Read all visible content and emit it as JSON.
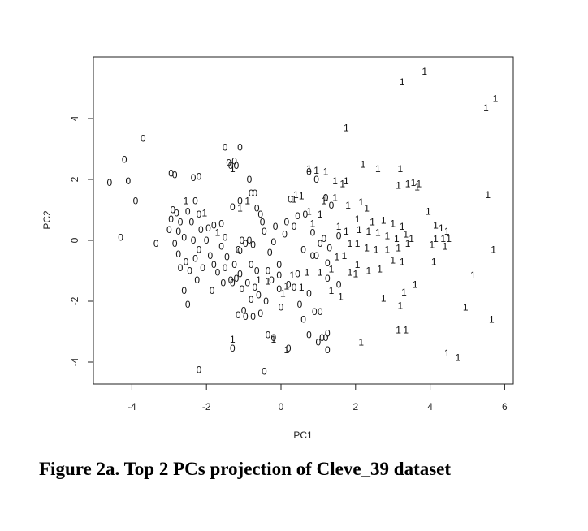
{
  "chart_data": {
    "type": "scatter",
    "title": "",
    "xlabel": "PC1",
    "ylabel": "PC2",
    "xlim": [
      -5,
      6.2
    ],
    "ylim": [
      -4.7,
      6
    ],
    "x_ticks": [
      "-4",
      "-2",
      "0",
      "2",
      "4",
      "6"
    ],
    "y_ticks": [
      "-4",
      "-2",
      "0",
      "2",
      "4"
    ],
    "grid": false,
    "legend": "none",
    "series": [
      {
        "name": "0",
        "points": [
          [
            -4.6,
            1.9
          ],
          [
            -4.2,
            2.65
          ],
          [
            -4.1,
            1.95
          ],
          [
            -3.7,
            3.35
          ],
          [
            -3.9,
            1.3
          ],
          [
            -4.3,
            0.1
          ],
          [
            -3.35,
            -0.1
          ],
          [
            -2.95,
            2.2
          ],
          [
            -2.85,
            2.15
          ],
          [
            -2.9,
            1
          ],
          [
            -2.95,
            0.7
          ],
          [
            -3.0,
            0.35
          ],
          [
            -2.8,
            0.9
          ],
          [
            -2.7,
            0.6
          ],
          [
            -2.75,
            0.3
          ],
          [
            -2.6,
            0.1
          ],
          [
            -2.85,
            -0.1
          ],
          [
            -2.75,
            -0.45
          ],
          [
            -2.55,
            -0.7
          ],
          [
            -2.7,
            -0.9
          ],
          [
            -2.45,
            -1.0
          ],
          [
            -2.6,
            -1.65
          ],
          [
            -2.5,
            -2.1
          ],
          [
            -2.35,
            2.05
          ],
          [
            -2.2,
            2.1
          ],
          [
            -2.3,
            1.3
          ],
          [
            -2.5,
            0.95
          ],
          [
            -2.4,
            0.6
          ],
          [
            -2.2,
            0.85
          ],
          [
            -2.15,
            0.35
          ],
          [
            -2.35,
            0.0
          ],
          [
            -2.2,
            -0.3
          ],
          [
            -2.3,
            -0.6
          ],
          [
            -2.1,
            -0.9
          ],
          [
            -2.25,
            -1.3
          ],
          [
            -1.95,
            0.4
          ],
          [
            -2.0,
            0.0
          ],
          [
            -1.9,
            -0.5
          ],
          [
            -1.8,
            -0.8
          ],
          [
            -1.7,
            -1.05
          ],
          [
            -1.8,
            0.5
          ],
          [
            -1.6,
            0.55
          ],
          [
            -1.5,
            0.1
          ],
          [
            -1.6,
            -0.2
          ],
          [
            -1.45,
            -0.55
          ],
          [
            -1.5,
            -0.9
          ],
          [
            -1.55,
            -1.4
          ],
          [
            -1.35,
            -1.3
          ],
          [
            -1.85,
            -1.65
          ],
          [
            -1.3,
            -1.4
          ],
          [
            -1.2,
            -1.25
          ],
          [
            -1.15,
            -0.3
          ],
          [
            -1.05,
            0.0
          ],
          [
            -0.95,
            -0.1
          ],
          [
            -0.85,
            0.0
          ],
          [
            -0.75,
            -0.15
          ],
          [
            -1.25,
            -0.8
          ],
          [
            -1.1,
            -1.1
          ],
          [
            -0.9,
            -1.4
          ],
          [
            -0.65,
            -1.0
          ],
          [
            -0.7,
            -1.55
          ],
          [
            -0.6,
            -1.8
          ],
          [
            -1.5,
            3.05
          ],
          [
            -1.4,
            2.55
          ],
          [
            -1.35,
            2.45
          ],
          [
            -1.25,
            2.6
          ],
          [
            -1.2,
            2.45
          ],
          [
            -1.1,
            3.05
          ],
          [
            -1.1,
            1.3
          ],
          [
            -1.3,
            1.1
          ],
          [
            -0.85,
            2.0
          ],
          [
            -0.8,
            1.55
          ],
          [
            -0.7,
            1.55
          ],
          [
            -0.65,
            1.05
          ],
          [
            -0.55,
            0.85
          ],
          [
            -0.5,
            0.6
          ],
          [
            -0.45,
            0.3
          ],
          [
            -1.0,
            -2.3
          ],
          [
            -1.15,
            -2.45
          ],
          [
            -0.95,
            -2.5
          ],
          [
            -0.75,
            -2.5
          ],
          [
            -0.4,
            -2.0
          ],
          [
            -0.55,
            -2.4
          ],
          [
            -1.3,
            -3.55
          ],
          [
            -2.2,
            -4.25
          ],
          [
            -0.45,
            -4.3
          ],
          [
            -0.35,
            -1.0
          ],
          [
            -0.3,
            -0.4
          ],
          [
            -0.2,
            -0.05
          ],
          [
            -0.05,
            -0.8
          ],
          [
            -0.05,
            -1.15
          ],
          [
            0.1,
            0.2
          ],
          [
            0.2,
            -1.45
          ],
          [
            0.35,
            -1.55
          ],
          [
            0.45,
            -1.1
          ],
          [
            0.0,
            -2.2
          ],
          [
            0.35,
            0.45
          ],
          [
            0.65,
            0.85
          ],
          [
            0.85,
            0.25
          ],
          [
            0.6,
            -0.3
          ],
          [
            0.85,
            -0.5
          ],
          [
            0.75,
            -1.75
          ],
          [
            0.5,
            -2.1
          ],
          [
            0.6,
            -2.6
          ],
          [
            0.9,
            -2.35
          ],
          [
            0.75,
            -3.1
          ],
          [
            1.05,
            -2.35
          ],
          [
            1.25,
            -1.25
          ],
          [
            1.55,
            -1.45
          ],
          [
            1.3,
            -0.25
          ],
          [
            1.05,
            -0.1
          ],
          [
            1.15,
            0.05
          ],
          [
            1.55,
            0.15
          ],
          [
            -1.1,
            -0.35
          ],
          [
            -0.8,
            -0.8
          ],
          [
            0.95,
            -0.5
          ],
          [
            1.25,
            -0.75
          ],
          [
            -0.8,
            -1.95
          ],
          [
            -0.35,
            -3.1
          ],
          [
            -0.2,
            -3.2
          ],
          [
            0.2,
            -3.55
          ],
          [
            1.0,
            -3.35
          ],
          [
            1.1,
            -3.2
          ],
          [
            1.2,
            -3.2
          ],
          [
            1.25,
            -3.05
          ],
          [
            1.25,
            -3.6
          ],
          [
            0.95,
            2.0
          ],
          [
            1.2,
            1.4
          ],
          [
            1.35,
            1.15
          ],
          [
            0.75,
            2.25
          ],
          [
            0.25,
            1.35
          ],
          [
            0.45,
            0.8
          ],
          [
            0.15,
            0.6
          ],
          [
            -0.15,
            0.45
          ],
          [
            -1.05,
            -1.6
          ],
          [
            -0.25,
            -1.3
          ],
          [
            -0.05,
            -1.6
          ]
        ]
      },
      {
        "name": "1",
        "points": [
          [
            3.25,
            5.2
          ],
          [
            3.85,
            5.55
          ],
          [
            5.5,
            4.35
          ],
          [
            5.75,
            4.65
          ],
          [
            1.75,
            3.7
          ],
          [
            -1.3,
            2.35
          ],
          [
            0.75,
            2.35
          ],
          [
            0.95,
            2.3
          ],
          [
            1.2,
            2.25
          ],
          [
            1.45,
            1.95
          ],
          [
            1.75,
            1.95
          ],
          [
            1.65,
            1.85
          ],
          [
            2.2,
            2.5
          ],
          [
            2.6,
            2.35
          ],
          [
            3.2,
            2.35
          ],
          [
            3.7,
            1.85
          ],
          [
            3.15,
            1.8
          ],
          [
            3.4,
            1.85
          ],
          [
            3.55,
            1.9
          ],
          [
            3.65,
            1.75
          ],
          [
            5.55,
            1.5
          ],
          [
            0.4,
            1.5
          ],
          [
            1.2,
            1.4
          ],
          [
            1.15,
            1.3
          ],
          [
            1.45,
            1.4
          ],
          [
            1.8,
            1.15
          ],
          [
            2.15,
            1.25
          ],
          [
            2.3,
            1.05
          ],
          [
            2.05,
            0.7
          ],
          [
            2.45,
            0.6
          ],
          [
            2.75,
            0.65
          ],
          [
            3.25,
            0.45
          ],
          [
            3.0,
            0.55
          ],
          [
            3.95,
            0.95
          ],
          [
            0.75,
            0.95
          ],
          [
            0.85,
            0.55
          ],
          [
            1.05,
            0.85
          ],
          [
            1.55,
            0.45
          ],
          [
            1.75,
            0.3
          ],
          [
            2.1,
            0.35
          ],
          [
            2.35,
            0.3
          ],
          [
            2.6,
            0.25
          ],
          [
            2.85,
            0.15
          ],
          [
            3.1,
            0.05
          ],
          [
            3.35,
            0.2
          ],
          [
            3.5,
            0.05
          ],
          [
            4.15,
            0.5
          ],
          [
            4.3,
            0.4
          ],
          [
            4.45,
            0.3
          ],
          [
            4.15,
            0.05
          ],
          [
            4.35,
            0.05
          ],
          [
            4.5,
            0.05
          ],
          [
            4.05,
            -0.15
          ],
          [
            4.4,
            -0.2
          ],
          [
            5.7,
            -0.3
          ],
          [
            1.85,
            -0.1
          ],
          [
            2.05,
            -0.1
          ],
          [
            2.3,
            -0.25
          ],
          [
            2.55,
            -0.3
          ],
          [
            2.85,
            -0.3
          ],
          [
            3.15,
            -0.25
          ],
          [
            3.4,
            -0.1
          ],
          [
            4.1,
            -0.7
          ],
          [
            1.7,
            -0.5
          ],
          [
            2.05,
            -0.8
          ],
          [
            2.35,
            -1.0
          ],
          [
            2.65,
            -0.95
          ],
          [
            3.0,
            -0.65
          ],
          [
            3.25,
            -0.7
          ],
          [
            5.15,
            -1.15
          ],
          [
            3.6,
            -1.45
          ],
          [
            3.3,
            -1.7
          ],
          [
            2.75,
            -1.9
          ],
          [
            3.2,
            -2.15
          ],
          [
            1.05,
            -1.05
          ],
          [
            1.35,
            -1.65
          ],
          [
            1.6,
            -1.85
          ],
          [
            2.0,
            -1.1
          ],
          [
            0.55,
            -1.55
          ],
          [
            0.7,
            -1.05
          ],
          [
            0.3,
            -1.15
          ],
          [
            0.15,
            -1.5
          ],
          [
            0.05,
            -1.75
          ],
          [
            -0.35,
            -1.35
          ],
          [
            -0.6,
            -1.3
          ],
          [
            -1.7,
            0.25
          ],
          [
            -2.05,
            0.9
          ],
          [
            -2.55,
            1.3
          ],
          [
            -1.1,
            1.05
          ],
          [
            -0.9,
            1.3
          ],
          [
            0.35,
            1.35
          ],
          [
            0.55,
            1.45
          ],
          [
            -1.3,
            -3.25
          ],
          [
            -0.2,
            -3.25
          ],
          [
            0.15,
            -3.6
          ],
          [
            2.15,
            -3.35
          ],
          [
            3.15,
            -2.95
          ],
          [
            3.35,
            -2.95
          ],
          [
            4.95,
            -2.2
          ],
          [
            5.65,
            -2.6
          ],
          [
            4.45,
            -3.7
          ],
          [
            4.75,
            -3.85
          ],
          [
            1.35,
            -0.95
          ],
          [
            1.5,
            -0.55
          ],
          [
            1.85,
            -1.05
          ]
        ]
      }
    ]
  },
  "caption": "Figure 2a. Top 2 PCs projection of Cleve_39 dataset"
}
